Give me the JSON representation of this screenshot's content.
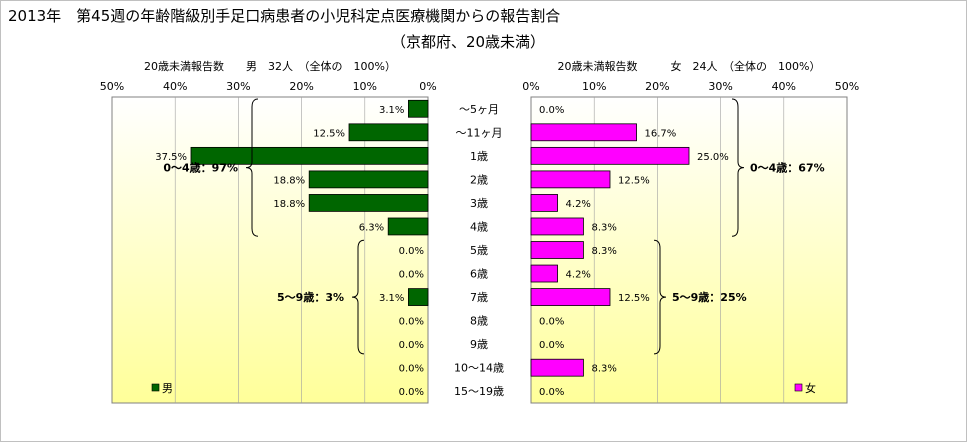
{
  "title_line1": "2013年　第45週の年齢階級別手足口病患者の小児科定点医療機関からの報告割合",
  "title_line2": "（京都府、20歳未満）",
  "colors": {
    "male_bar": "#006600",
    "female_bar": "#ff00ff",
    "plot_top": "#ffffff",
    "plot_bottom": "#ffff99",
    "border": "#808080"
  },
  "chart_data": [
    {
      "type": "bar",
      "orientation": "horizontal",
      "direction": "right-to-left",
      "axis_title": "20歳未満報告数　　男　32人　（全体の　100%）",
      "x_ticks": [
        "50%",
        "40%",
        "30%",
        "20%",
        "10%",
        "0%"
      ],
      "xlim": [
        0,
        50
      ],
      "legend": "男",
      "legend_position": "bottom-left",
      "categories": [
        "〜5ヶ月",
        "〜11ヶ月",
        "1歳",
        "2歳",
        "3歳",
        "4歳",
        "5歳",
        "6歳",
        "7歳",
        "8歳",
        "9歳",
        "10〜14歳",
        "15〜19歳"
      ],
      "values": [
        3.1,
        12.5,
        37.5,
        18.8,
        18.8,
        6.3,
        0.0,
        0.0,
        3.1,
        0.0,
        0.0,
        0.0,
        0.0
      ],
      "labels": [
        "3.1%",
        "12.5%",
        "37.5%",
        "18.8%",
        "18.8%",
        "6.3%",
        "0.0%",
        "0.0%",
        "3.1%",
        "0.0%",
        "0.0%",
        "0.0%",
        "0.0%"
      ],
      "brackets": [
        {
          "from": 0,
          "to": 5,
          "label": "0〜4歳：97%"
        },
        {
          "from": 6,
          "to": 10,
          "label": "5〜9歳：3%"
        }
      ]
    },
    {
      "type": "bar",
      "orientation": "horizontal",
      "direction": "left-to-right",
      "axis_title": "20歳未満報告数　　　女　24人　（全体の　100%）",
      "x_ticks": [
        "0%",
        "10%",
        "20%",
        "30%",
        "40%",
        "50%"
      ],
      "xlim": [
        0,
        50
      ],
      "legend": "女",
      "legend_position": "bottom-right",
      "categories": [
        "〜5ヶ月",
        "〜11ヶ月",
        "1歳",
        "2歳",
        "3歳",
        "4歳",
        "5歳",
        "6歳",
        "7歳",
        "8歳",
        "9歳",
        "10〜14歳",
        "15〜19歳"
      ],
      "values": [
        0.0,
        16.7,
        25.0,
        12.5,
        4.2,
        8.3,
        8.3,
        4.2,
        12.5,
        0.0,
        0.0,
        8.3,
        0.0
      ],
      "labels": [
        "0.0%",
        "16.7%",
        "25.0%",
        "12.5%",
        "4.2%",
        "8.3%",
        "8.3%",
        "4.2%",
        "12.5%",
        "0.0%",
        "0.0%",
        "8.3%",
        "0.0%"
      ],
      "brackets": [
        {
          "from": 0,
          "to": 5,
          "label": "0〜4歳：67%"
        },
        {
          "from": 6,
          "to": 10,
          "label": "5〜9歳：25%"
        }
      ]
    }
  ]
}
